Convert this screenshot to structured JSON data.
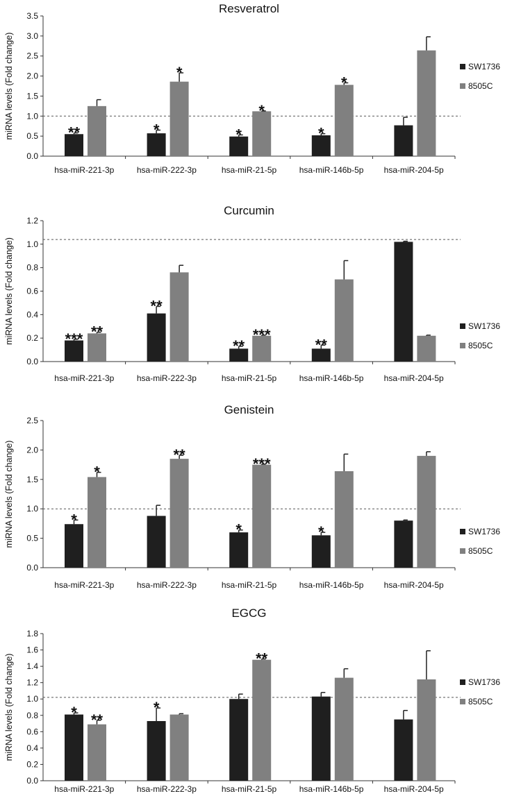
{
  "chart_data": [
    {
      "type": "bar",
      "title": "Resveratrol",
      "ylabel": "miRNA levels (Fold change)",
      "xlabel": "",
      "ylim": [
        0,
        3.5
      ],
      "ytick_step": 0.5,
      "reference_line": 1.0,
      "categories": [
        "hsa-miR-221-3p",
        "hsa-miR-222-3p",
        "hsa-miR-21-5p",
        "hsa-miR-146b-5p",
        "hsa-miR-204-5p"
      ],
      "series": [
        {
          "name": "SW1736",
          "color": "#1f1f1f",
          "values": [
            0.55,
            0.57,
            0.49,
            0.52,
            0.77
          ],
          "errors": [
            0.03,
            0.08,
            0.04,
            0.04,
            0.2
          ],
          "significance": [
            "**",
            "*",
            "*",
            "*",
            ""
          ]
        },
        {
          "name": "8505C",
          "color": "#808080",
          "values": [
            1.25,
            1.86,
            1.12,
            1.78,
            2.64
          ],
          "errors": [
            0.16,
            0.22,
            0.01,
            0.05,
            0.34
          ],
          "significance": [
            "",
            "*",
            "*",
            "*",
            ""
          ]
        }
      ],
      "legend": "right"
    },
    {
      "type": "bar",
      "title": "Curcumin",
      "ylabel": "miRNA levels (Fold change)",
      "xlabel": "",
      "ylim": [
        0,
        1.2
      ],
      "ytick_step": 0.2,
      "reference_line": 1.04,
      "categories": [
        "hsa-miR-221-3p",
        "hsa-miR-222-3p",
        "hsa-miR-21-5p",
        "hsa-miR-146b-5p",
        "hsa-miR-204-5p"
      ],
      "series": [
        {
          "name": "SW1736",
          "color": "#1f1f1f",
          "values": [
            0.18,
            0.41,
            0.11,
            0.11,
            1.02
          ],
          "errors": [
            0.01,
            0.06,
            0.02,
            0.03,
            0.005
          ],
          "significance": [
            "***",
            "**",
            "**",
            "**",
            ""
          ]
        },
        {
          "name": "8505C",
          "color": "#808080",
          "values": [
            0.24,
            0.76,
            0.22,
            0.7,
            0.22
          ],
          "errors": [
            0.01,
            0.06,
            0.005,
            0.16,
            0.005
          ],
          "significance": [
            "**",
            "",
            "***",
            "",
            ""
          ]
        }
      ],
      "legend": "right"
    },
    {
      "type": "bar",
      "title": "Genistein",
      "ylabel": "miRNA levels (Fold change)",
      "xlabel": "",
      "ylim": [
        0,
        2.5
      ],
      "ytick_step": 0.5,
      "reference_line": 1.0,
      "categories": [
        "hsa-miR-221-3p",
        "hsa-miR-222-3p",
        "hsa-miR-21-5p",
        "hsa-miR-146b-5p",
        "hsa-miR-204-5p"
      ],
      "series": [
        {
          "name": "SW1736",
          "color": "#1f1f1f",
          "values": [
            0.74,
            0.88,
            0.6,
            0.55,
            0.8
          ],
          "errors": [
            0.07,
            0.18,
            0.04,
            0.05,
            0.01
          ],
          "significance": [
            "*",
            "",
            "*",
            "*",
            ""
          ]
        },
        {
          "name": "8505C",
          "color": "#808080",
          "values": [
            1.54,
            1.85,
            1.75,
            1.64,
            1.9
          ],
          "errors": [
            0.08,
            0.06,
            0.01,
            0.29,
            0.07
          ],
          "significance": [
            "*",
            "**",
            "***",
            "",
            ""
          ]
        }
      ],
      "legend": "right"
    },
    {
      "type": "bar",
      "title": "EGCG",
      "ylabel": "miRNA levels (Fold change)",
      "xlabel": "",
      "ylim": [
        0,
        1.8
      ],
      "ytick_step": 0.2,
      "reference_line": 1.02,
      "categories": [
        "hsa-miR-221-3p",
        "hsa-miR-222-3p",
        "hsa-miR-21-5p",
        "hsa-miR-146b-5p",
        "hsa-miR-204-5p"
      ],
      "series": [
        {
          "name": "SW1736",
          "color": "#1f1f1f",
          "values": [
            0.81,
            0.73,
            1.0,
            1.03,
            0.75
          ],
          "errors": [
            0.02,
            0.16,
            0.06,
            0.05,
            0.11
          ],
          "significance": [
            "*",
            "*",
            "",
            "",
            ""
          ]
        },
        {
          "name": "8505C",
          "color": "#808080",
          "values": [
            0.69,
            0.81,
            1.48,
            1.26,
            1.24
          ],
          "errors": [
            0.05,
            0.01,
            0.01,
            0.11,
            0.35
          ],
          "significance": [
            "**",
            "",
            "**",
            "",
            ""
          ]
        }
      ],
      "legend": "right"
    }
  ]
}
